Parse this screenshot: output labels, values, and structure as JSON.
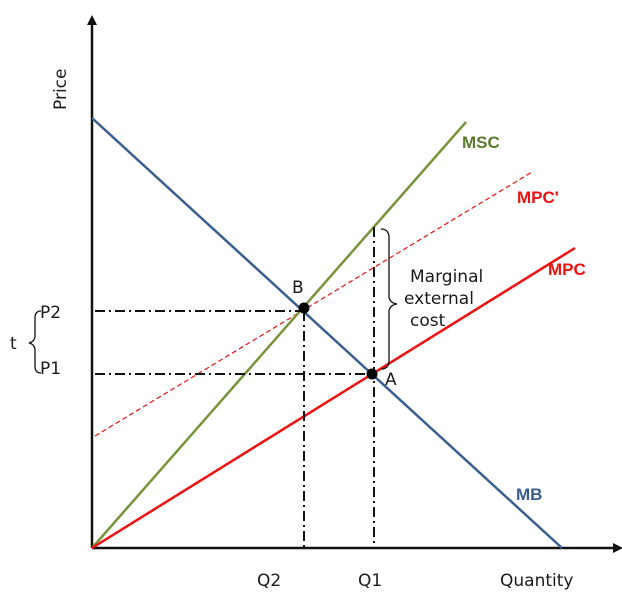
{
  "axes": {
    "y_label": "Price",
    "x_label": "Quantity"
  },
  "curves": {
    "msc": {
      "label": "MSC",
      "color": "#5a7a2e"
    },
    "mpc_prime": {
      "label": "MPC'",
      "color": "#ee1111"
    },
    "mpc": {
      "label": "MPC",
      "color": "#ee1111"
    },
    "mb": {
      "label": "MB",
      "color": "#3a5f8f"
    }
  },
  "points": {
    "a": "A",
    "b": "B"
  },
  "prices": {
    "p1": "P1",
    "p2": "P2",
    "tax": "t"
  },
  "quantities": {
    "q1": "Q1",
    "q2": "Q2"
  },
  "annotation": {
    "line1": "Marginal",
    "line2": "external",
    "line3": "cost"
  }
}
